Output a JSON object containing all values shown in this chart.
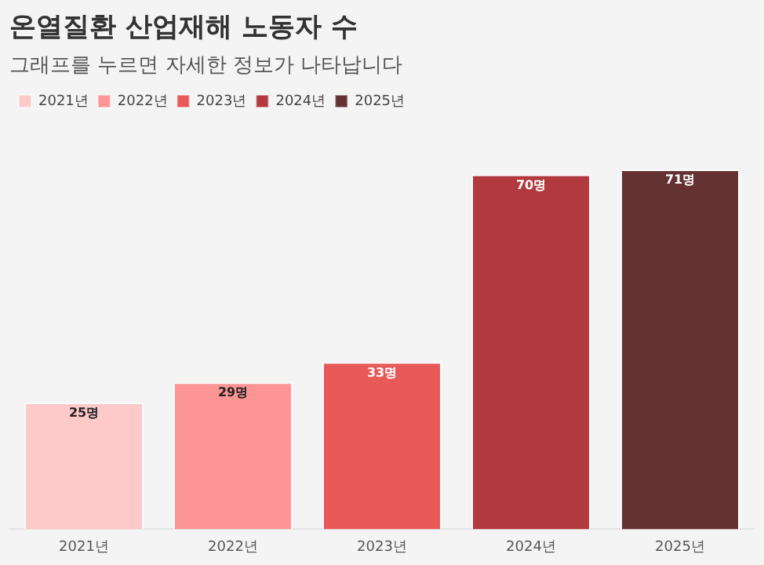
{
  "chart_data": {
    "type": "bar",
    "title": "온열질환 산업재해 노동자 수",
    "subtitle": "그래프를 누르면 자세한 정보가 나타납니다",
    "categories": [
      "2021년",
      "2022년",
      "2023년",
      "2024년",
      "2025년"
    ],
    "stacked": true,
    "series": [
      {
        "name": "2021년",
        "color": "#fdc9c9",
        "values": [
          25,
          null,
          null,
          null,
          null
        ],
        "value_labels": [
          "25명",
          null,
          null,
          null,
          null
        ]
      },
      {
        "name": "2022년",
        "color": "#fd9594",
        "values": [
          null,
          29,
          null,
          null,
          null
        ],
        "value_labels": [
          null,
          "29명",
          null,
          null,
          null
        ]
      },
      {
        "name": "2023년",
        "color": "#e85a58",
        "values": [
          null,
          null,
          33,
          null,
          null
        ],
        "value_labels": [
          null,
          null,
          "33명",
          null,
          null
        ]
      },
      {
        "name": "2024년",
        "color": "#b23a3f",
        "values": [
          null,
          null,
          null,
          70,
          null
        ],
        "value_labels": [
          null,
          null,
          null,
          "70명",
          null
        ]
      },
      {
        "name": "2025년",
        "color": "#653233",
        "values": [
          null,
          null,
          null,
          null,
          71
        ],
        "value_labels": [
          null,
          null,
          null,
          null,
          "71명"
        ]
      }
    ],
    "legend": "top left",
    "grid": false
  }
}
